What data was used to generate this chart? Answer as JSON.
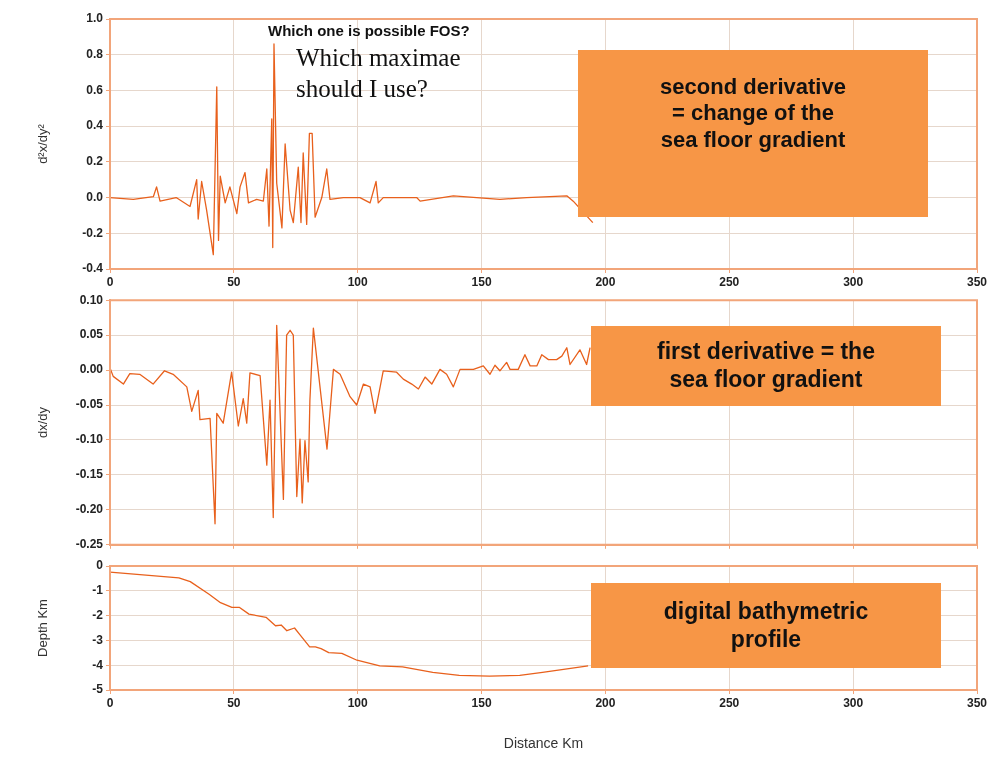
{
  "chart_data": [
    {
      "type": "line",
      "ylabel": "d²x/dy²",
      "xlim": [
        0,
        350
      ],
      "xticks": [
        0,
        50,
        100,
        150,
        200,
        250,
        300,
        350
      ],
      "ylim": [
        -0.4,
        1.0
      ],
      "yticks": [
        {
          "value": -0.4,
          "label": "-0.4"
        },
        {
          "value": -0.2,
          "label": "-0.2"
        },
        {
          "value": 0,
          "label": "0.0"
        },
        {
          "value": 0.2,
          "label": "0.2"
        },
        {
          "value": 0.4,
          "label": "0.4"
        },
        {
          "value": 0.6,
          "label": "0.6"
        },
        {
          "value": 0.8,
          "label": "0.8"
        },
        {
          "value": 1.0,
          "label": "1.0"
        }
      ],
      "grid": true,
      "legend": false,
      "marker": "none",
      "line_style": "solid",
      "series": [
        {
          "color": "#e8601c",
          "x": [
            0,
            9.4,
            17.5,
            18.8,
            20.2,
            26.7,
            32.3,
            35,
            35.6,
            37,
            39,
            41.7,
            43.1,
            43.8,
            44.5,
            46.5,
            48.4,
            51.2,
            52.5,
            54.5,
            55.9,
            59.2,
            61.9,
            63.3,
            64.2,
            65.3,
            65.7,
            66.2,
            67.3,
            69.4,
            70.7,
            72.7,
            74,
            76,
            77.1,
            78,
            79.4,
            80.5,
            81.6,
            82.8,
            85.5,
            87.5,
            88.8,
            94.2,
            100.9,
            105,
            107.4,
            108.3,
            110.3,
            123.8,
            125.2,
            138.6,
            157.4,
            168.2,
            184.4,
            187,
            194.9
          ],
          "values": [
            0,
            -0.01,
            0.005,
            0.06,
            -0.02,
            0,
            -0.05,
            0.1,
            -0.12,
            0.09,
            -0.07,
            -0.32,
            0.62,
            -0.24,
            0.12,
            -0.03,
            0.06,
            -0.09,
            0.06,
            0.14,
            -0.03,
            -0.01,
            -0.02,
            0.16,
            -0.16,
            0.44,
            -0.28,
            0.86,
            0.08,
            -0.17,
            0.3,
            -0.07,
            -0.14,
            0.17,
            -0.14,
            0.25,
            -0.15,
            0.36,
            0.36,
            -0.11,
            0,
            0.16,
            -0.01,
            0,
            0,
            -0.03,
            0.09,
            -0.03,
            0,
            0,
            -0.02,
            0.01,
            -0.01,
            0,
            0.01,
            -0.02,
            -0.14
          ]
        }
      ],
      "annotations": [
        "Which one is possible FOS?",
        "Which maximae should I use?",
        "second derivative = change of the sea floor gradient"
      ]
    },
    {
      "type": "line",
      "ylabel": "dx/dy",
      "xlim": [
        0,
        350
      ],
      "xticks": [
        0,
        50,
        100,
        150,
        200,
        250,
        300,
        350
      ],
      "ylim": [
        -0.25,
        0.1
      ],
      "yticks": [
        {
          "value": -0.25,
          "label": "-0.25"
        },
        {
          "value": -0.2,
          "label": "-0.20"
        },
        {
          "value": -0.15,
          "label": "-0.15"
        },
        {
          "value": -0.1,
          "label": "-0.10"
        },
        {
          "value": -0.05,
          "label": "-0.05"
        },
        {
          "value": 0,
          "label": "0.00"
        },
        {
          "value": 0.05,
          "label": "0.05"
        },
        {
          "value": 0.1,
          "label": "0.10"
        }
      ],
      "grid": true,
      "legend": false,
      "marker": "none",
      "line_style": "solid",
      "tick_labels": "y",
      "series": [
        {
          "color": "#e8601c",
          "x": [
            0,
            1.3,
            5.4,
            8,
            12,
            17.4,
            22,
            25.5,
            31,
            33,
            35.6,
            36.3,
            40.4,
            42.4,
            43.1,
            45.7,
            49.1,
            51.8,
            53.8,
            55.2,
            56.5,
            60.6,
            63.3,
            64.6,
            65.9,
            67.3,
            70,
            71.3,
            72.7,
            74,
            75.4,
            76.7,
            77.6,
            78.7,
            80,
            80.7,
            82.1,
            87.6,
            90.2,
            92.9,
            96.9,
            99.6,
            102.3,
            105,
            107,
            110.3,
            115.7,
            118.4,
            121.8,
            124.5,
            127.2,
            129.9,
            133.2,
            135.9,
            138.6,
            141.3,
            146.7,
            150.7,
            153.4,
            155.4,
            157.4,
            160.1,
            161.5,
            164.8,
            167.5,
            169.6,
            172.3,
            174.3,
            177,
            180.3,
            182.4,
            184.4,
            185.7,
            189.7,
            192.4,
            193.8
          ],
          "values": [
            0.003,
            -0.009,
            -0.02,
            -0.005,
            -0.006,
            -0.02,
            -0.001,
            -0.006,
            -0.024,
            -0.059,
            -0.029,
            -0.071,
            -0.069,
            -0.22,
            -0.062,
            -0.076,
            -0.003,
            -0.08,
            -0.041,
            -0.076,
            -0.004,
            -0.008,
            -0.136,
            -0.043,
            -0.211,
            0.064,
            -0.185,
            0.05,
            0.057,
            0.05,
            -0.181,
            -0.099,
            -0.19,
            -0.101,
            -0.16,
            -0.043,
            0.06,
            -0.113,
            0.001,
            -0.006,
            -0.038,
            -0.05,
            -0.02,
            -0.024,
            -0.062,
            -0.001,
            -0.003,
            -0.013,
            -0.02,
            -0.027,
            -0.01,
            -0.02,
            0.001,
            -0.006,
            -0.024,
            0.001,
            0.001,
            0.006,
            -0.006,
            0.007,
            -0.001,
            0.011,
            0.001,
            0.001,
            0.022,
            0.006,
            0.006,
            0.022,
            0.015,
            0.015,
            0.02,
            0.032,
            0.008,
            0.029,
            0.008,
            0.032
          ]
        }
      ],
      "annotations": [
        "first derivative = the sea floor gradient"
      ]
    },
    {
      "type": "line",
      "ylabel": "Depth Km",
      "xlabel": "Distance Km",
      "xlim": [
        0,
        350
      ],
      "xticks": [
        0,
        50,
        100,
        150,
        200,
        250,
        300,
        350
      ],
      "ylim": [
        -5,
        0
      ],
      "yticks": [
        -5,
        -4,
        -3,
        -2,
        -1,
        0
      ],
      "grid": true,
      "legend": false,
      "marker": "none",
      "line_style": "solid",
      "series": [
        {
          "color": "#e8601c",
          "x": [
            0,
            27.8,
            32.4,
            40,
            44.6,
            49.2,
            52.3,
            56.1,
            63,
            66.8,
            69.1,
            71.4,
            74.5,
            76.8,
            80.6,
            82.9,
            85.2,
            88.3,
            93.6,
            99.7,
            108.9,
            118.1,
            130.3,
            141,
            153.2,
            165.4,
            174.6,
            193
          ],
          "values": [
            -0.25,
            -0.48,
            -0.63,
            -1.14,
            -1.48,
            -1.67,
            -1.67,
            -1.94,
            -2.07,
            -2.41,
            -2.38,
            -2.61,
            -2.5,
            -2.79,
            -3.26,
            -3.26,
            -3.33,
            -3.49,
            -3.52,
            -3.8,
            -4.03,
            -4.07,
            -4.29,
            -4.41,
            -4.44,
            -4.41,
            -4.29,
            -4.03
          ]
        }
      ],
      "annotations": [
        "digital bathymetric profile"
      ]
    }
  ]
}
